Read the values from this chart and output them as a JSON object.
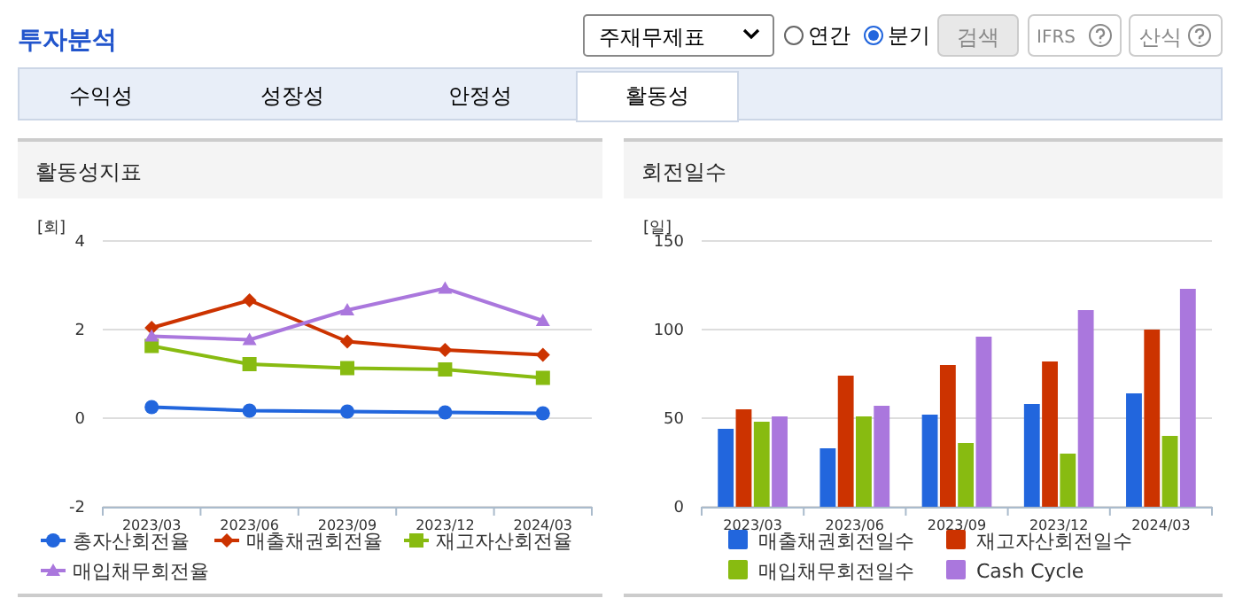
{
  "chart_data": [
    {
      "type": "other",
      "title": "투자분석",
      "annotations": [
        "주재무제표",
        "연간",
        "분기",
        "검색",
        "IFRS",
        "산식",
        "수익성",
        "성장성",
        "안정성",
        "활동성"
      ]
    },
    {
      "type": "line",
      "title": "활동성지표",
      "ylabel": "[회]",
      "categories": [
        "2023/03",
        "2023/06",
        "2023/09",
        "2023/12",
        "2024/03"
      ],
      "ylim": [
        -2,
        4
      ],
      "yticks": [
        -2,
        0,
        2,
        4
      ],
      "grid": "y",
      "legend": "bottom",
      "series": [
        {
          "name": "총자산회전율",
          "color": "#2266dd",
          "marker": "circle",
          "values": [
            0.25,
            0.17,
            0.15,
            0.13,
            0.11
          ]
        },
        {
          "name": "매출채권회전율",
          "color": "#cc3300",
          "marker": "diamond",
          "values": [
            2.04,
            2.66,
            1.73,
            1.54,
            1.43
          ]
        },
        {
          "name": "재고자산회전율",
          "color": "#88bb11",
          "marker": "square",
          "values": [
            1.63,
            1.22,
            1.13,
            1.1,
            0.91
          ]
        },
        {
          "name": "매입채무회전율",
          "color": "#aa77dd",
          "marker": "triangle",
          "values": [
            1.85,
            1.77,
            2.44,
            2.93,
            2.2
          ]
        }
      ]
    },
    {
      "type": "bar",
      "title": "회전일수",
      "ylabel": "[일]",
      "categories": [
        "2023/03",
        "2023/06",
        "2023/09",
        "2023/12",
        "2024/03"
      ],
      "ylim": [
        0,
        150
      ],
      "yticks": [
        0,
        50,
        100,
        150
      ],
      "grid": "y",
      "legend": "bottom",
      "series": [
        {
          "name": "매출채권회전일수",
          "color": "#2266dd",
          "values": [
            44,
            33,
            52,
            58,
            64
          ]
        },
        {
          "name": "재고자산회전일수",
          "color": "#cc3300",
          "values": [
            55,
            74,
            80,
            82,
            100
          ]
        },
        {
          "name": "매입채무회전일수",
          "color": "#88bb11",
          "values": [
            48,
            51,
            36,
            30,
            40
          ]
        },
        {
          "name": "Cash Cycle",
          "color": "#aa77dd",
          "values": [
            51,
            57,
            96,
            111,
            123
          ]
        }
      ]
    }
  ]
}
